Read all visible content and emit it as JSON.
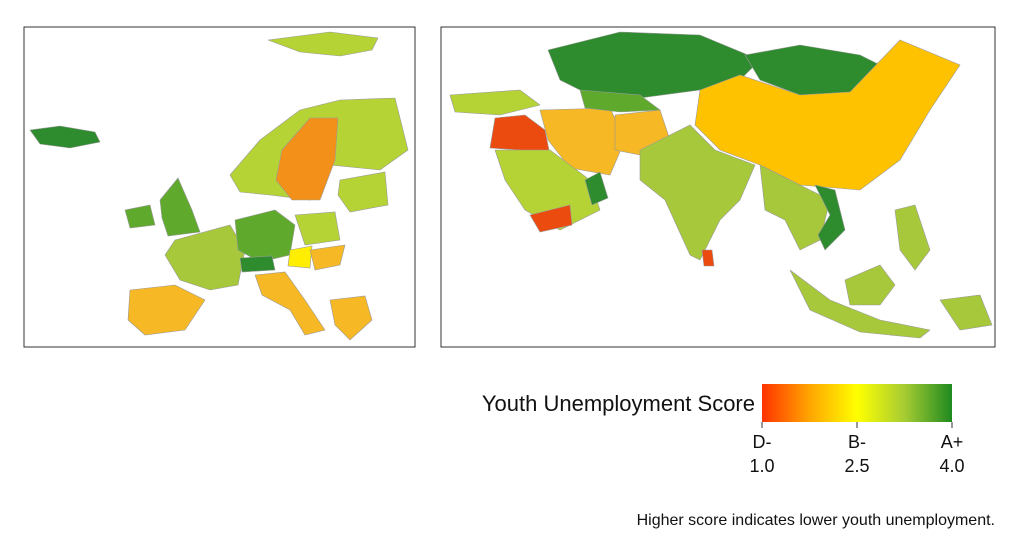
{
  "legend": {
    "title": "Youth Unemployment Score",
    "ticks": [
      {
        "grade": "D-",
        "value": 1,
        "label": "1.0"
      },
      {
        "grade": "B-",
        "value": 2.5,
        "label": "2.5"
      },
      {
        "grade": "A+",
        "value": 4,
        "label": "4.0"
      }
    ]
  },
  "note": "Higher score indicates lower youth unemployment."
}
